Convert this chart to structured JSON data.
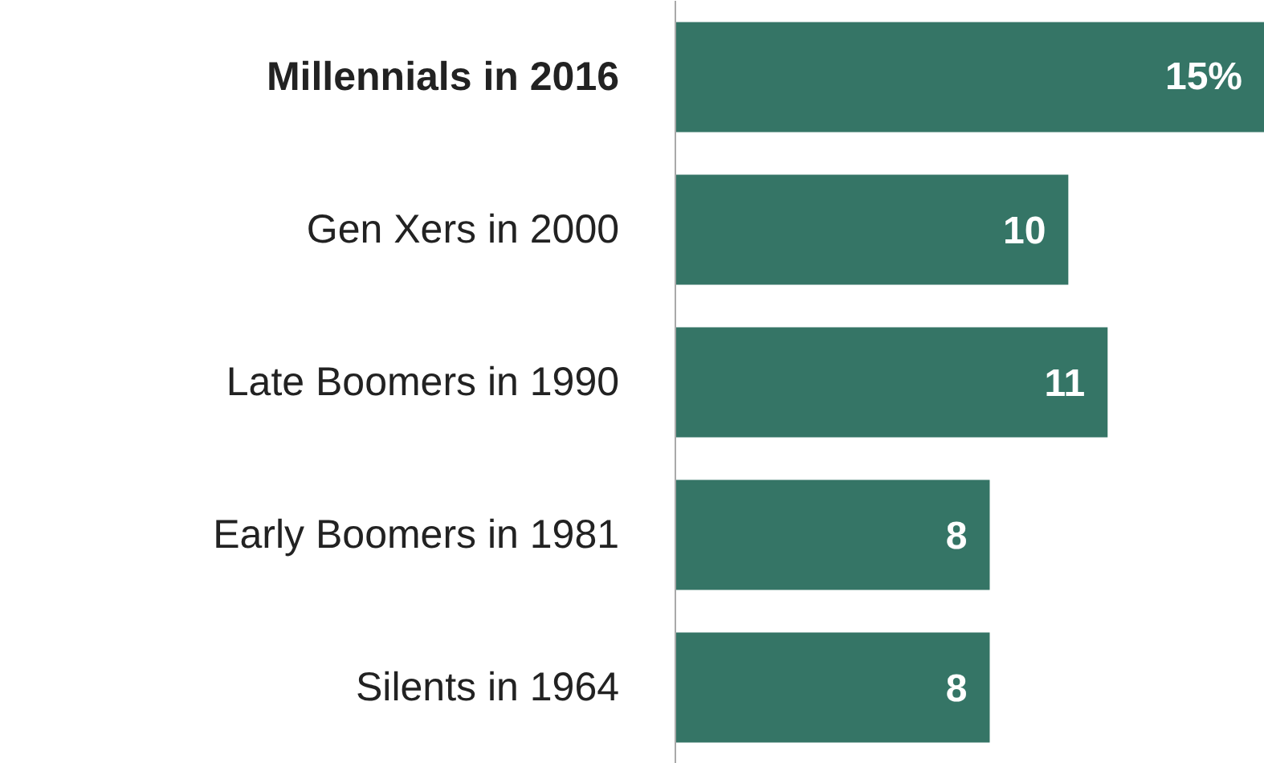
{
  "chart_data": {
    "type": "bar",
    "orientation": "horizontal",
    "categories": [
      "Millennials in 2016",
      "Gen Xers in 2000",
      "Late Boomers in 1990",
      "Early Boomers in 1981",
      "Silents in 1964"
    ],
    "values": [
      15,
      10,
      11,
      8,
      8
    ],
    "value_labels": [
      "15%",
      "10",
      "11",
      "8",
      "8"
    ],
    "color": "#357566"
  }
}
